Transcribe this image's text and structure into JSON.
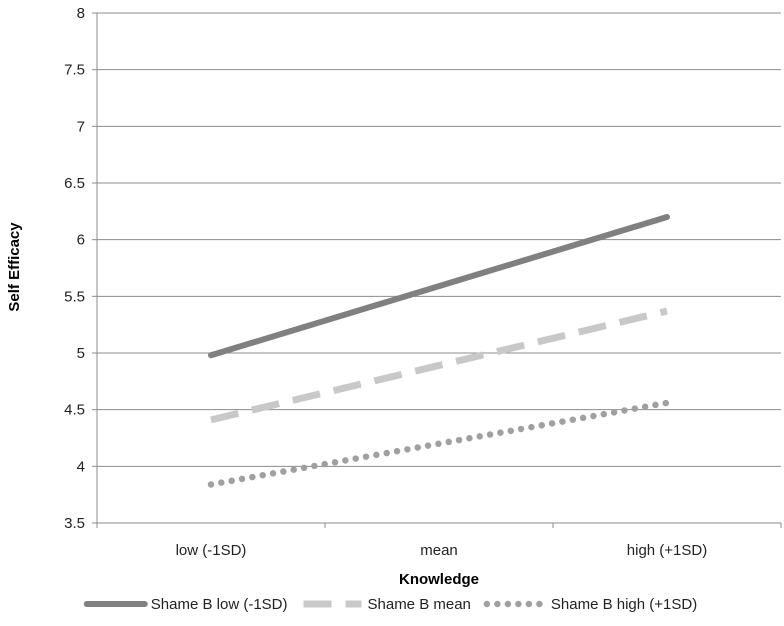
{
  "chart_data": {
    "type": "line",
    "title": "",
    "xlabel": "Knowledge",
    "ylabel": "Self Efficacy",
    "categories": [
      "low (-1SD)",
      "mean",
      "high (+1SD)"
    ],
    "ylim": [
      3.5,
      8
    ],
    "yticks": [
      "3.5",
      "4",
      "4.5",
      "5",
      "5.5",
      "6",
      "6.5",
      "7",
      "7.5",
      "8"
    ],
    "grid": true,
    "legend_position": "bottom",
    "series": [
      {
        "name": "Shame B low (-1SD)",
        "values": [
          4.98,
          5.59,
          6.2
        ],
        "color": "#808080",
        "style": "solid"
      },
      {
        "name": "Shame B mean",
        "values": [
          4.41,
          4.89,
          5.37
        ],
        "color": "#c8c8c8",
        "style": "dashed"
      },
      {
        "name": "Shame B high (+1SD)",
        "values": [
          3.84,
          4.2,
          4.56
        ],
        "color": "#a0a0a0",
        "style": "dotted"
      }
    ]
  }
}
